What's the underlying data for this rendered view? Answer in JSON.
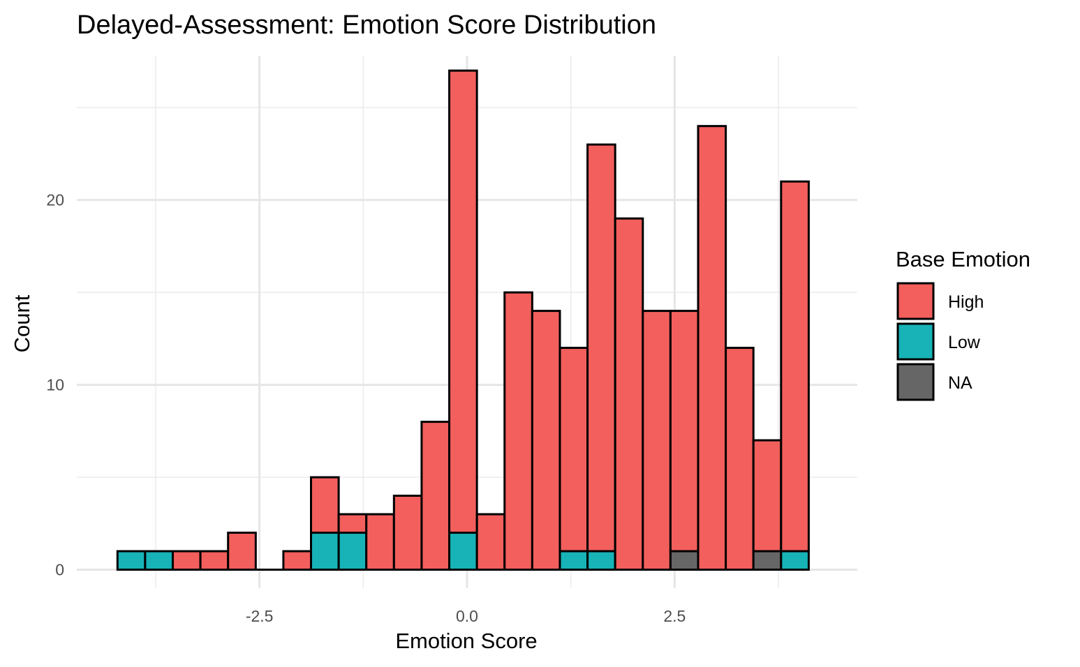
{
  "chart_data": {
    "type": "bar",
    "title": "Delayed-Assessment: Emotion Score Distribution",
    "xlabel": "Emotion Score",
    "ylabel": "Count",
    "xlim": [
      -4.7,
      4.7
    ],
    "ylim": [
      -1.0,
      27.8
    ],
    "x_ticks": [
      -2.5,
      0.0,
      2.5
    ],
    "x_tick_labels": [
      "-2.5",
      "0.0",
      "2.5"
    ],
    "y_ticks": [
      0,
      10,
      20
    ],
    "y_tick_labels": [
      "0",
      "10",
      "20"
    ],
    "grid": true,
    "legend": {
      "title": "Base Emotion",
      "position": "right",
      "entries": [
        "High",
        "Low",
        "NA"
      ]
    },
    "bin_width": 0.333,
    "bin_starts": [
      -4.21,
      -3.877,
      -3.544,
      -3.211,
      -2.878,
      -2.545,
      -2.212,
      -1.879,
      -1.546,
      -1.213,
      -0.88,
      -0.547,
      -0.214,
      0.119,
      0.452,
      0.785,
      1.118,
      1.451,
      1.784,
      2.117,
      2.45,
      2.783,
      3.116,
      3.449,
      3.782
    ],
    "series": [
      {
        "name": "NA",
        "color": "#666666",
        "values": [
          0,
          0,
          0,
          0,
          0,
          0,
          0,
          0,
          0,
          0,
          0,
          0,
          0,
          0,
          0,
          0,
          0,
          0,
          0,
          0,
          1,
          0,
          0,
          1,
          0
        ]
      },
      {
        "name": "Low",
        "color": "#17B3B7",
        "values": [
          1,
          1,
          0,
          0,
          0,
          0,
          0,
          2,
          2,
          0,
          0,
          0,
          2,
          0,
          0,
          0,
          1,
          1,
          0,
          0,
          0,
          0,
          0,
          0,
          1
        ]
      },
      {
        "name": "High",
        "color": "#F25F5C",
        "values": [
          0,
          0,
          1,
          1,
          2,
          0,
          1,
          3,
          1,
          3,
          4,
          8,
          25,
          3,
          15,
          14,
          11,
          22,
          19,
          14,
          13,
          24,
          12,
          6,
          20
        ]
      }
    ]
  }
}
